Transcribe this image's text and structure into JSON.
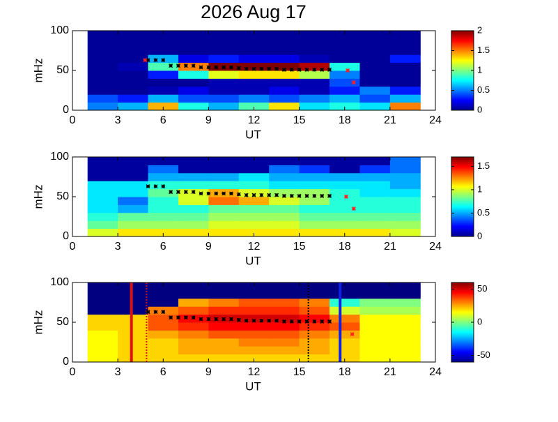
{
  "chart_data": [
    {
      "type": "heatmap",
      "title": "2026 Aug 17",
      "xlabel": "UT",
      "ylabel": "mHz",
      "xlim": [
        0,
        24
      ],
      "ylim": [
        0,
        100
      ],
      "xticks": [
        0,
        3,
        6,
        9,
        12,
        15,
        18,
        21,
        24
      ],
      "yticks": [
        0,
        50,
        100
      ],
      "x_edges": [
        1,
        3,
        5,
        7,
        9,
        11,
        13,
        15,
        17,
        19,
        21,
        23
      ],
      "y_edges": [
        0,
        10,
        20,
        30,
        40,
        50,
        60,
        70,
        80,
        90,
        100
      ],
      "z": [
        [
          0.5,
          0.6,
          1.4,
          0.8,
          0.6,
          0.9,
          1.3,
          0.7,
          0.8,
          0.7,
          1.5
        ],
        [
          0.4,
          0.3,
          0.6,
          0.4,
          0.4,
          0.5,
          0.4,
          0.5,
          0.6,
          0.4,
          0.6
        ],
        [
          0.05,
          0.05,
          0.1,
          0.2,
          0.1,
          0.1,
          0.2,
          0.1,
          0.3,
          0.5,
          0.3
        ],
        [
          0.05,
          0.05,
          0.05,
          0.05,
          0.1,
          0.1,
          0.1,
          0.1,
          0.4,
          0.05,
          0.05
        ],
        [
          0.05,
          0.05,
          0.3,
          0.8,
          1.2,
          1.3,
          1.3,
          1.1,
          0.5,
          0.05,
          0.05
        ],
        [
          0.05,
          0.1,
          0.9,
          1.5,
          2,
          2,
          2,
          1.9,
          0.8,
          0.05,
          0.05
        ],
        [
          0.05,
          0.05,
          0.6,
          0.2,
          0.3,
          0.2,
          0.2,
          0.1,
          0.05,
          0.05,
          0.3
        ],
        [
          0.05,
          0.05,
          0.05,
          0.05,
          0.05,
          0.05,
          0.05,
          0.05,
          0.05,
          0.05,
          0.05
        ],
        [
          0.05,
          0.05,
          0.05,
          0.05,
          0.05,
          0.05,
          0.05,
          0.05,
          0.05,
          0.05,
          0.05
        ],
        [
          0.05,
          0.05,
          0.05,
          0.05,
          0.05,
          0.05,
          0.05,
          0.05,
          0.05,
          0.05,
          0.05
        ]
      ],
      "clim": [
        0,
        2
      ],
      "cticks": [
        0,
        0.5,
        1,
        1.5,
        2
      ],
      "series": [
        {
          "color": "#000000",
          "x": [
            5,
            5.5,
            6,
            6.5,
            7,
            7.5,
            8,
            8.5,
            9,
            9.5,
            10,
            10.5,
            11,
            11.5,
            12,
            12.5,
            13,
            13.5,
            14,
            14.5,
            15,
            15.5,
            16,
            16.5,
            17
          ],
          "values": [
            63,
            63,
            63,
            56,
            56,
            56,
            56,
            54,
            54,
            54,
            54,
            54,
            53,
            52,
            52,
            52,
            52,
            52,
            51,
            51,
            51,
            51,
            51,
            51,
            51
          ]
        },
        {
          "color": "#ff2020",
          "x": [
            4.8,
            18.2,
            18.6
          ],
          "values": [
            63,
            50,
            35
          ]
        }
      ]
    },
    {
      "type": "heatmap",
      "xlabel": "UT",
      "ylabel": "mHz",
      "xlim": [
        0,
        24
      ],
      "ylim": [
        0,
        100
      ],
      "xticks": [
        0,
        3,
        6,
        9,
        12,
        15,
        18,
        21,
        24
      ],
      "yticks": [
        0,
        50,
        100
      ],
      "x_edges": [
        1,
        3,
        5,
        7,
        9,
        11,
        13,
        15,
        17,
        19,
        21,
        23
      ],
      "y_edges": [
        0,
        10,
        20,
        30,
        40,
        50,
        60,
        70,
        80,
        90,
        100
      ],
      "z": [
        [
          1.0,
          1.1,
          1.1,
          1.1,
          1.1,
          1.1,
          1.1,
          1.1,
          1.1,
          1.1,
          1.0
        ],
        [
          0.8,
          0.9,
          0.9,
          0.9,
          1.0,
          1.0,
          1.0,
          0.9,
          0.9,
          0.9,
          0.9
        ],
        [
          0.7,
          0.8,
          0.8,
          0.8,
          0.9,
          0.9,
          0.9,
          0.8,
          0.8,
          0.8,
          0.8
        ],
        [
          0.6,
          0.5,
          0.7,
          0.7,
          0.8,
          0.8,
          0.8,
          0.7,
          0.7,
          0.7,
          0.7
        ],
        [
          0.6,
          0.4,
          0.7,
          1.0,
          1.3,
          1.2,
          1.0,
          0.9,
          0.7,
          0.7,
          0.7
        ],
        [
          0.6,
          0.6,
          0.8,
          1.0,
          1.2,
          1.0,
          0.9,
          0.9,
          0.7,
          0.6,
          0.6
        ],
        [
          0.6,
          0.6,
          0.7,
          0.7,
          0.7,
          0.7,
          0.6,
          0.6,
          0.6,
          0.6,
          0.5
        ],
        [
          0.05,
          0.05,
          0.5,
          0.5,
          0.5,
          0.6,
          0.5,
          0.5,
          0.5,
          0.5,
          0.5
        ],
        [
          0.05,
          0.05,
          0.4,
          0.05,
          0.05,
          0.05,
          0.4,
          0.3,
          0.05,
          0.3,
          0.4
        ],
        [
          0.05,
          0.05,
          0.05,
          0.05,
          0.05,
          0.05,
          0.05,
          0.05,
          0.05,
          0.05,
          0.4
        ]
      ],
      "clim": [
        0,
        1.7
      ],
      "cticks": [
        0,
        0.5,
        1,
        1.5
      ],
      "series": [
        {
          "color": "#000000",
          "x": [
            5,
            5.5,
            6,
            6.5,
            7,
            7.5,
            8,
            8.5,
            9,
            9.5,
            10,
            10.5,
            11,
            11.5,
            12,
            12.5,
            13,
            13.5,
            14,
            14.5,
            15,
            15.5,
            16,
            16.5,
            17
          ],
          "values": [
            63,
            63,
            63,
            56,
            56,
            56,
            56,
            54,
            54,
            54,
            54,
            54,
            53,
            52,
            52,
            52,
            52,
            52,
            51,
            51,
            51,
            51,
            51,
            51,
            51
          ]
        },
        {
          "color": "#ff2020",
          "x": [
            18.1,
            18.6
          ],
          "values": [
            50,
            35
          ]
        }
      ]
    },
    {
      "type": "heatmap",
      "xlabel": "UT",
      "ylabel": "mHz",
      "xlim": [
        0,
        24
      ],
      "ylim": [
        0,
        100
      ],
      "xticks": [
        0,
        3,
        6,
        9,
        12,
        15,
        18,
        21,
        24
      ],
      "yticks": [
        0,
        50,
        100
      ],
      "x_edges": [
        1,
        3,
        5,
        7,
        9,
        11,
        13,
        15,
        17,
        19,
        21,
        23
      ],
      "y_edges": [
        0,
        10,
        20,
        30,
        40,
        50,
        60,
        70,
        80,
        90,
        100
      ],
      "z": [
        [
          15,
          20,
          20,
          20,
          20,
          20,
          20,
          20,
          20,
          15,
          15
        ],
        [
          15,
          20,
          20,
          25,
          25,
          25,
          25,
          25,
          20,
          15,
          15
        ],
        [
          15,
          20,
          20,
          25,
          25,
          30,
          30,
          25,
          20,
          15,
          15
        ],
        [
          15,
          20,
          25,
          30,
          35,
          35,
          35,
          30,
          25,
          15,
          15
        ],
        [
          20,
          20,
          35,
          40,
          45,
          45,
          45,
          40,
          35,
          15,
          15
        ],
        [
          20,
          20,
          35,
          45,
          50,
          50,
          50,
          45,
          30,
          15,
          15
        ],
        [
          -60,
          -60,
          30,
          35,
          40,
          40,
          40,
          35,
          10,
          5,
          5
        ],
        [
          -60,
          -60,
          -60,
          25,
          30,
          35,
          35,
          30,
          -10,
          0,
          0
        ],
        [
          -60,
          -60,
          -60,
          -60,
          -60,
          -60,
          -60,
          -60,
          -60,
          -60,
          -60
        ],
        [
          -60,
          -60,
          -60,
          -60,
          -60,
          -60,
          -60,
          -60,
          -60,
          -60,
          -60
        ]
      ],
      "clim": [
        -60,
        60
      ],
      "cticks": [
        -50,
        0,
        50
      ],
      "series": [
        {
          "color": "#000000",
          "x": [
            5,
            5.5,
            6,
            6.5,
            7,
            7.5,
            8,
            8.5,
            9,
            9.5,
            10,
            10.5,
            11,
            11.5,
            12,
            12.5,
            13,
            13.5,
            14,
            14.5,
            15,
            15.5,
            16,
            16.5,
            17
          ],
          "values": [
            63,
            63,
            63,
            56,
            56,
            56,
            56,
            54,
            54,
            54,
            54,
            54,
            53,
            52,
            52,
            52,
            52,
            52,
            51,
            51,
            51,
            51,
            51,
            51,
            51
          ]
        },
        {
          "color": "#ff2020",
          "x": [
            18.5
          ],
          "values": [
            35
          ]
        }
      ],
      "vlines": [
        {
          "x": 3.9,
          "color": "#e01010",
          "style": "solid"
        },
        {
          "x": 4.9,
          "color": "#e01010",
          "style": "dotted"
        },
        {
          "x": 15.6,
          "color": "#000000",
          "style": "dotted"
        },
        {
          "x": 17.7,
          "color": "#1020e0",
          "style": "solid"
        }
      ]
    }
  ]
}
